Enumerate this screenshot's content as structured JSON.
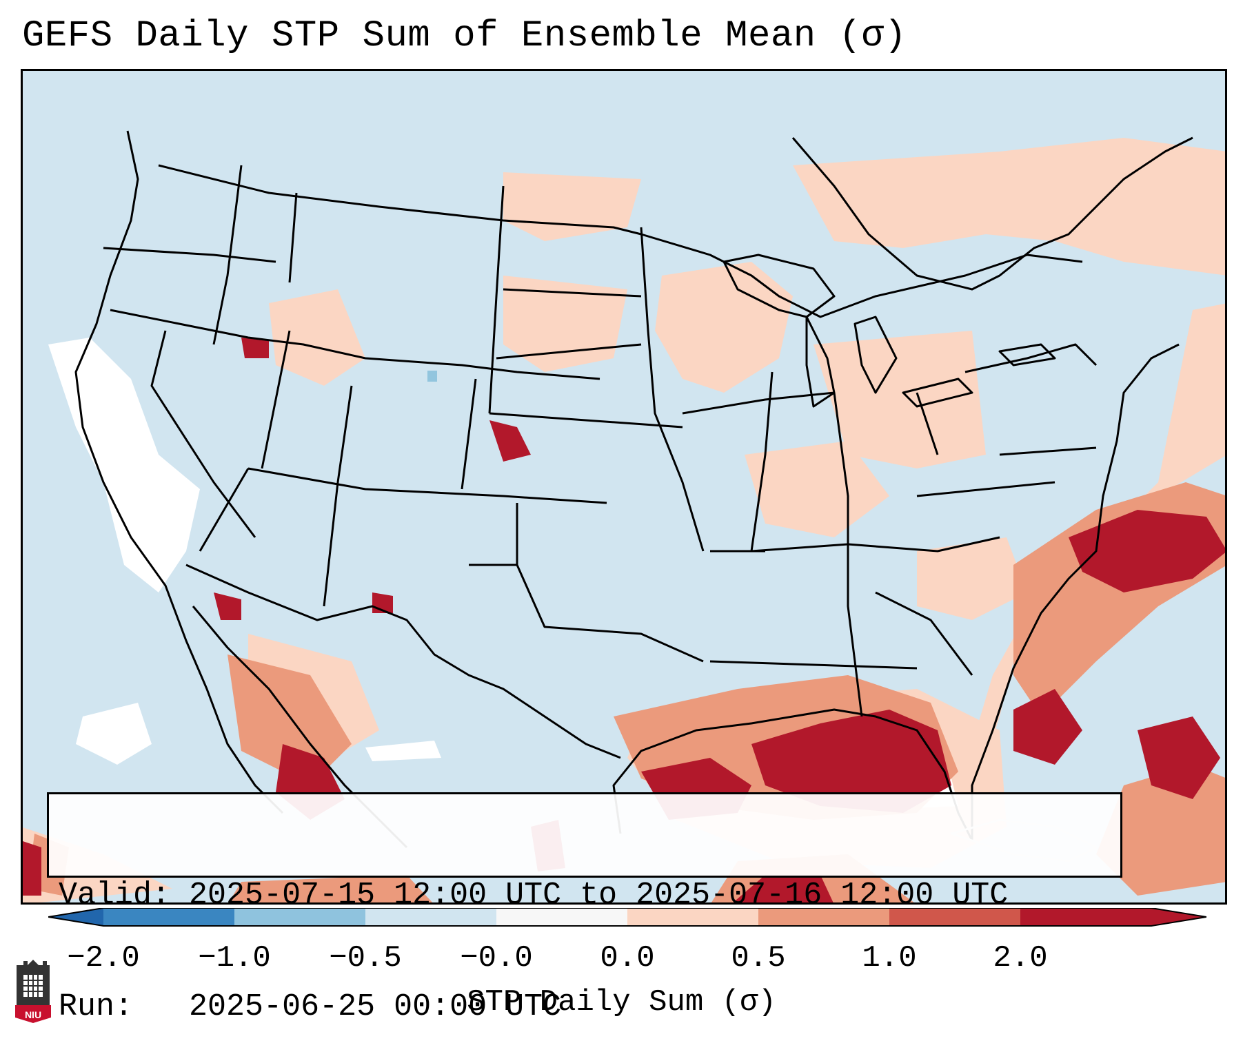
{
  "title": "GEFS Daily STP Sum of Ensemble Mean (σ)",
  "info": {
    "valid_label": "Valid:",
    "valid_value": "2025-07-15 12:00 UTC to 2025-07-16 12:00 UTC",
    "run_label": "Run:",
    "run_value": "2025-06-25 00:00 UTC"
  },
  "colorbar": {
    "label": "STP Daily Sum (σ)",
    "ticks": [
      "−2.0",
      "−1.0",
      "−0.5",
      "−0.0",
      "0.0",
      "0.5",
      "1.0",
      "2.0"
    ],
    "bin_colors": [
      "#3a86c1",
      "#8fc3de",
      "#d1e5f0",
      "#f7f7f7",
      "#fbd6c3",
      "#eb9a7c",
      "#d0574b",
      "#b2182b"
    ],
    "extend_low_color": "#2166ac",
    "extend_high_color": "#b2182b"
  },
  "colors": {
    "background_field": "#d1e5f0",
    "light_positive": "#fbd6c3",
    "medium_positive": "#eb9a7c",
    "strong_positive": "#d0574b",
    "max_positive": "#b2182b",
    "missing": "#ffffff",
    "negative_pixel": "#92c5de"
  },
  "logo": {
    "text": "NIU",
    "color": "#c8102e"
  }
}
